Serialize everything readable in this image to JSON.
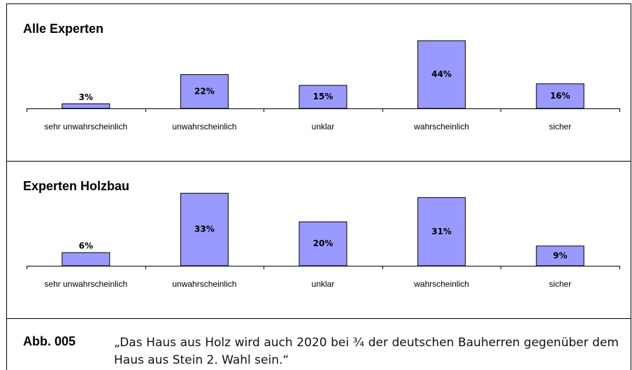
{
  "chart_data": [
    {
      "type": "bar",
      "title": "Alle Experten",
      "categories": [
        "sehr unwahrscheinlich",
        "unwahrscheinlich",
        "unklar",
        "wahrscheinlich",
        "sicher"
      ],
      "values": [
        3,
        22,
        15,
        44,
        16
      ],
      "value_labels": [
        "3%",
        "22%",
        "15%",
        "44%",
        "16%"
      ],
      "color": "#9999ff",
      "ylim": [
        0,
        45
      ]
    },
    {
      "type": "bar",
      "title": "Experten Holzbau",
      "categories": [
        "sehr unwahrscheinlich",
        "unwahrscheinlich",
        "unklar",
        "wahrscheinlich",
        "sicher"
      ],
      "values": [
        6,
        33,
        20,
        31,
        9
      ],
      "value_labels": [
        "6%",
        "33%",
        "20%",
        "31%",
        "9%"
      ],
      "color": "#9999ff",
      "ylim": [
        0,
        35
      ]
    }
  ],
  "caption": {
    "label": "Abb. 005",
    "text": "„Das Haus aus Holz wird auch 2020 bei ¾ der deutschen Bauherren gegenüber dem Haus aus Stein 2. Wahl sein.“"
  }
}
